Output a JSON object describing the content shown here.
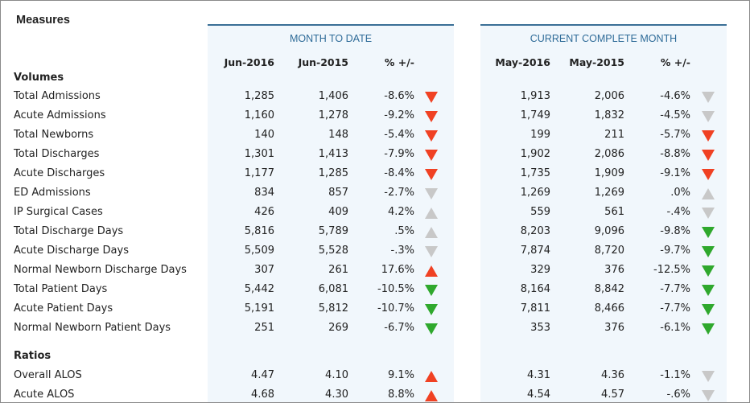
{
  "title": "Measures",
  "panels": {
    "mtd": {
      "title": "MONTH TO DATE",
      "col1": "Jun-2016",
      "col2": "Jun-2015",
      "col3": "% +/-"
    },
    "ccm": {
      "title": "CURRENT COMPLETE MONTH",
      "col1": "May-2016",
      "col2": "May-2015",
      "col3": "% +/-"
    }
  },
  "colors": {
    "red": "#f04123",
    "green": "#2fa82d",
    "gray": "#c8c8c8",
    "accent": "#2e6b98"
  },
  "sections": [
    {
      "name": "Volumes",
      "rows": [
        {
          "label": "Total Admissions",
          "mtd": [
            "1,285",
            "1,406",
            "-8.6%"
          ],
          "mtd_ind": [
            "down",
            "red"
          ],
          "ccm": [
            "1,913",
            "2,006",
            "-4.6%"
          ],
          "ccm_ind": [
            "down",
            "gray"
          ]
        },
        {
          "label": "Acute Admissions",
          "mtd": [
            "1,160",
            "1,278",
            "-9.2%"
          ],
          "mtd_ind": [
            "down",
            "red"
          ],
          "ccm": [
            "1,749",
            "1,832",
            "-4.5%"
          ],
          "ccm_ind": [
            "down",
            "gray"
          ]
        },
        {
          "label": "Total Newborns",
          "mtd": [
            "140",
            "148",
            "-5.4%"
          ],
          "mtd_ind": [
            "down",
            "red"
          ],
          "ccm": [
            "199",
            "211",
            "-5.7%"
          ],
          "ccm_ind": [
            "down",
            "red"
          ]
        },
        {
          "label": "Total Discharges",
          "mtd": [
            "1,301",
            "1,413",
            "-7.9%"
          ],
          "mtd_ind": [
            "down",
            "red"
          ],
          "ccm": [
            "1,902",
            "2,086",
            "-8.8%"
          ],
          "ccm_ind": [
            "down",
            "red"
          ]
        },
        {
          "label": "Acute Discharges",
          "mtd": [
            "1,177",
            "1,285",
            "-8.4%"
          ],
          "mtd_ind": [
            "down",
            "red"
          ],
          "ccm": [
            "1,735",
            "1,909",
            "-9.1%"
          ],
          "ccm_ind": [
            "down",
            "red"
          ]
        },
        {
          "label": "ED Admissions",
          "mtd": [
            "834",
            "857",
            "-2.7%"
          ],
          "mtd_ind": [
            "down",
            "gray"
          ],
          "ccm": [
            "1,269",
            "1,269",
            ".0%"
          ],
          "ccm_ind": [
            "up",
            "gray"
          ]
        },
        {
          "label": "IP Surgical Cases",
          "mtd": [
            "426",
            "409",
            "4.2%"
          ],
          "mtd_ind": [
            "up",
            "gray"
          ],
          "ccm": [
            "559",
            "561",
            "-.4%"
          ],
          "ccm_ind": [
            "down",
            "gray"
          ]
        },
        {
          "label": "Total Discharge Days",
          "mtd": [
            "5,816",
            "5,789",
            ".5%"
          ],
          "mtd_ind": [
            "up",
            "gray"
          ],
          "ccm": [
            "8,203",
            "9,096",
            "-9.8%"
          ],
          "ccm_ind": [
            "down",
            "green"
          ]
        },
        {
          "label": "Acute Discharge Days",
          "mtd": [
            "5,509",
            "5,528",
            "-.3%"
          ],
          "mtd_ind": [
            "down",
            "gray"
          ],
          "ccm": [
            "7,874",
            "8,720",
            "-9.7%"
          ],
          "ccm_ind": [
            "down",
            "green"
          ]
        },
        {
          "label": "Normal Newborn Discharge Days",
          "mtd": [
            "307",
            "261",
            "17.6%"
          ],
          "mtd_ind": [
            "up",
            "red"
          ],
          "ccm": [
            "329",
            "376",
            "-12.5%"
          ],
          "ccm_ind": [
            "down",
            "green"
          ]
        },
        {
          "label": "Total Patient Days",
          "mtd": [
            "5,442",
            "6,081",
            "-10.5%"
          ],
          "mtd_ind": [
            "down",
            "green"
          ],
          "ccm": [
            "8,164",
            "8,842",
            "-7.7%"
          ],
          "ccm_ind": [
            "down",
            "green"
          ]
        },
        {
          "label": "Acute Patient Days",
          "mtd": [
            "5,191",
            "5,812",
            "-10.7%"
          ],
          "mtd_ind": [
            "down",
            "green"
          ],
          "ccm": [
            "7,811",
            "8,466",
            "-7.7%"
          ],
          "ccm_ind": [
            "down",
            "green"
          ]
        },
        {
          "label": "Normal Newborn Patient Days",
          "mtd": [
            "251",
            "269",
            "-6.7%"
          ],
          "mtd_ind": [
            "down",
            "green"
          ],
          "ccm": [
            "353",
            "376",
            "-6.1%"
          ],
          "ccm_ind": [
            "down",
            "green"
          ]
        }
      ]
    },
    {
      "name": "Ratios",
      "rows": [
        {
          "label": "Overall ALOS",
          "mtd": [
            "4.47",
            "4.10",
            "9.1%"
          ],
          "mtd_ind": [
            "up",
            "red"
          ],
          "ccm": [
            "4.31",
            "4.36",
            "-1.1%"
          ],
          "ccm_ind": [
            "down",
            "gray"
          ]
        },
        {
          "label": "Acute ALOS",
          "mtd": [
            "4.68",
            "4.30",
            "8.8%"
          ],
          "mtd_ind": [
            "up",
            "red"
          ],
          "ccm": [
            "4.54",
            "4.57",
            "-.6%"
          ],
          "ccm_ind": [
            "down",
            "gray"
          ]
        }
      ]
    }
  ]
}
